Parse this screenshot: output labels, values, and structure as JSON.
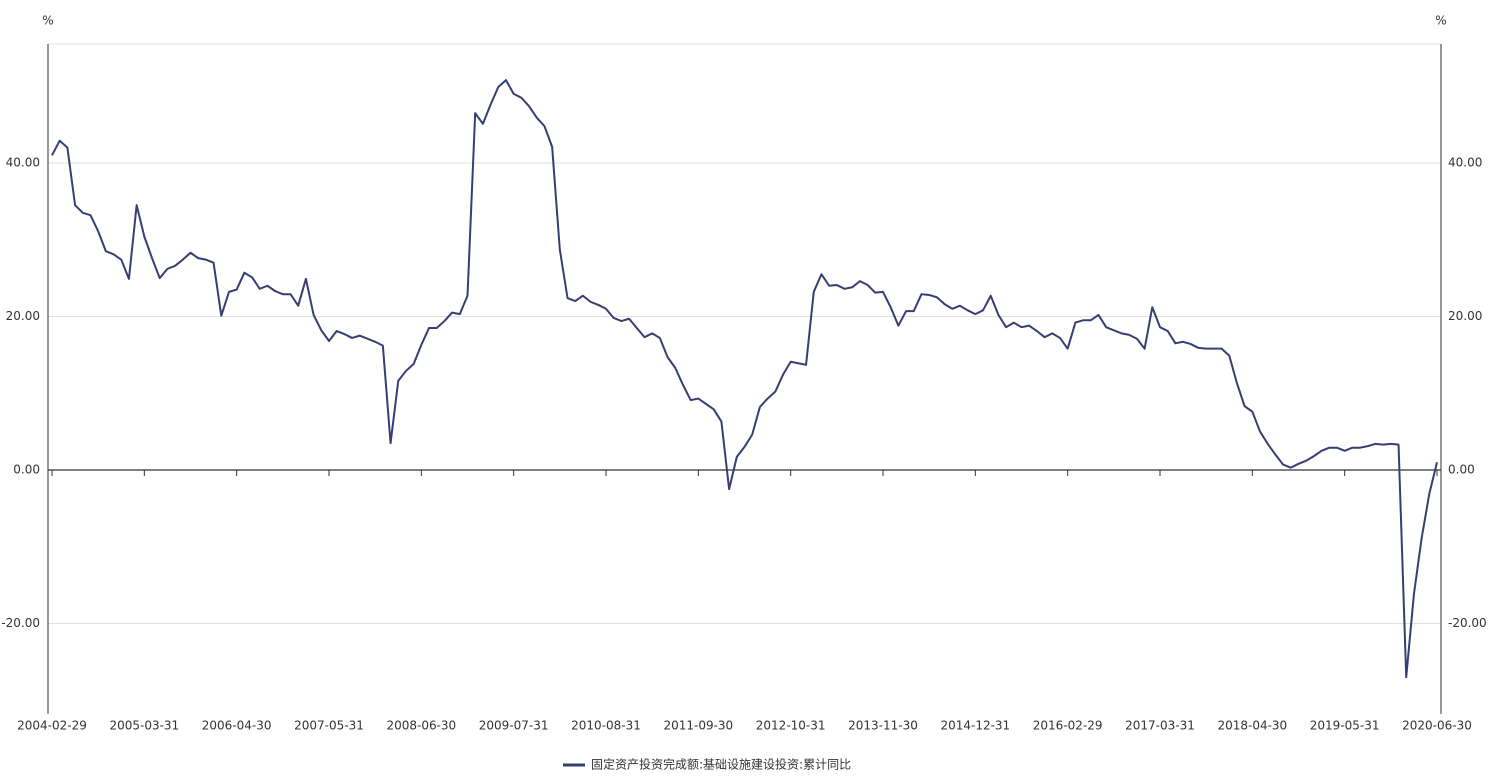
{
  "chart_data": {
    "type": "line",
    "y_label": "%",
    "y2_label": "%",
    "categories": [
      "2004-02-29",
      null,
      null,
      null,
      null,
      null,
      null,
      null,
      null,
      null,
      null,
      null,
      "2005-03-31",
      null,
      null,
      null,
      null,
      null,
      null,
      null,
      null,
      null,
      null,
      null,
      "2006-04-30",
      null,
      null,
      null,
      null,
      null,
      null,
      null,
      null,
      null,
      null,
      null,
      "2007-05-31",
      null,
      null,
      null,
      null,
      null,
      null,
      null,
      null,
      null,
      null,
      null,
      "2008-06-30",
      null,
      null,
      null,
      null,
      null,
      null,
      null,
      null,
      null,
      null,
      null,
      "2009-07-31",
      null,
      null,
      null,
      null,
      null,
      null,
      null,
      null,
      null,
      null,
      null,
      "2010-08-31",
      null,
      null,
      null,
      null,
      null,
      null,
      null,
      null,
      null,
      null,
      null,
      "2011-09-30",
      null,
      null,
      null,
      null,
      null,
      null,
      null,
      null,
      null,
      null,
      null,
      "2012-10-31",
      null,
      null,
      null,
      null,
      null,
      null,
      null,
      null,
      null,
      null,
      null,
      "2013-11-30",
      null,
      null,
      null,
      null,
      null,
      null,
      null,
      null,
      null,
      null,
      null,
      "2014-12-31",
      null,
      null,
      null,
      null,
      null,
      null,
      null,
      null,
      null,
      null,
      null,
      "2016-02-29",
      null,
      null,
      null,
      null,
      null,
      null,
      null,
      null,
      null,
      null,
      null,
      "2017-03-31",
      null,
      null,
      null,
      null,
      null,
      null,
      null,
      null,
      null,
      null,
      null,
      "2018-04-30",
      null,
      null,
      null,
      null,
      null,
      null,
      null,
      null,
      null,
      null,
      null,
      "2019-05-31",
      null,
      null,
      null,
      null,
      null,
      null,
      null,
      null,
      null,
      null,
      null,
      "2020-06-30"
    ],
    "series": [
      {
        "name": "固定资产投资完成额:基础设施建设投资:累计同比",
        "color": "#353f72",
        "values": [
          41,
          42.9,
          42,
          34.5,
          33.5,
          33.2,
          31.1,
          28.5,
          28.1,
          27.4,
          24.9,
          34.5,
          30.4,
          27.6,
          25,
          26.2,
          26.6,
          27.4,
          28.3,
          27.6,
          27.4,
          27,
          20.1,
          23.2,
          23.5,
          25.7,
          25.1,
          23.6,
          24,
          23.3,
          22.9,
          22.9,
          21.4,
          24.9,
          20.2,
          18.2,
          16.8,
          18.1,
          17.7,
          17.2,
          17.5,
          17.1,
          16.7,
          16.2,
          3.5,
          11.6,
          12.9,
          13.8,
          16.3,
          18.5,
          18.5,
          19.4,
          20.5,
          20.3,
          22.7,
          46.5,
          45.1,
          47.6,
          49.9,
          50.8,
          49,
          48.5,
          47.4,
          45.9,
          44.8,
          42.1,
          28.7,
          22.4,
          22,
          22.7,
          21.9,
          21.5,
          21,
          19.8,
          19.4,
          19.7,
          18.5,
          17.3,
          17.8,
          17.2,
          14.7,
          13.3,
          11.1,
          9.1,
          9.3,
          8.6,
          7.9,
          6.3,
          -2.5,
          1.7,
          3,
          4.6,
          8.2,
          9.3,
          10.2,
          12.4,
          14.1,
          13.9,
          13.7,
          23.2,
          25.5,
          24,
          24.1,
          23.6,
          23.8,
          24.6,
          24.1,
          23.1,
          23.2,
          21.2,
          18.8,
          20.7,
          20.7,
          22.9,
          22.8,
          22.5,
          21.6,
          21,
          21.4,
          20.8,
          20.3,
          20.8,
          22.7,
          20.2,
          18.6,
          19.2,
          18.6,
          18.8,
          18.1,
          17.3,
          17.8,
          17.2,
          15.8,
          19.2,
          19.5,
          19.5,
          20.2,
          18.6,
          18.2,
          17.8,
          17.6,
          17.1,
          15.8,
          21.2,
          18.6,
          18.1,
          16.5,
          16.7,
          16.4,
          15.9,
          15.8,
          15.8,
          15.8,
          14.9,
          11.3,
          8.3,
          7.6,
          5,
          3.4,
          2,
          0.7,
          0.3,
          0.8,
          1.2,
          1.8,
          2.5,
          2.9,
          2.9,
          2.5,
          2.9,
          2.9,
          3.1,
          3.4,
          3.3,
          3.4,
          3.3,
          -27,
          -16.2,
          -8.9,
          -3.1,
          1
        ]
      }
    ],
    "ylim": [
      -31.8,
      55.5
    ],
    "yticks": [
      {
        "value": -20,
        "label": "-20.00"
      },
      {
        "value": 0,
        "label": "0.00"
      },
      {
        "value": 20,
        "label": "20.00"
      },
      {
        "value": 40,
        "label": "40.00"
      }
    ],
    "y2lim": [
      -31.8,
      55.5
    ],
    "y2ticks": [
      {
        "value": -20,
        "label": "-20.00"
      },
      {
        "value": 0,
        "label": "0.00"
      },
      {
        "value": 20,
        "label": "20.00"
      },
      {
        "value": 40,
        "label": "40.00"
      }
    ],
    "grid": true,
    "legend": "bottom"
  }
}
